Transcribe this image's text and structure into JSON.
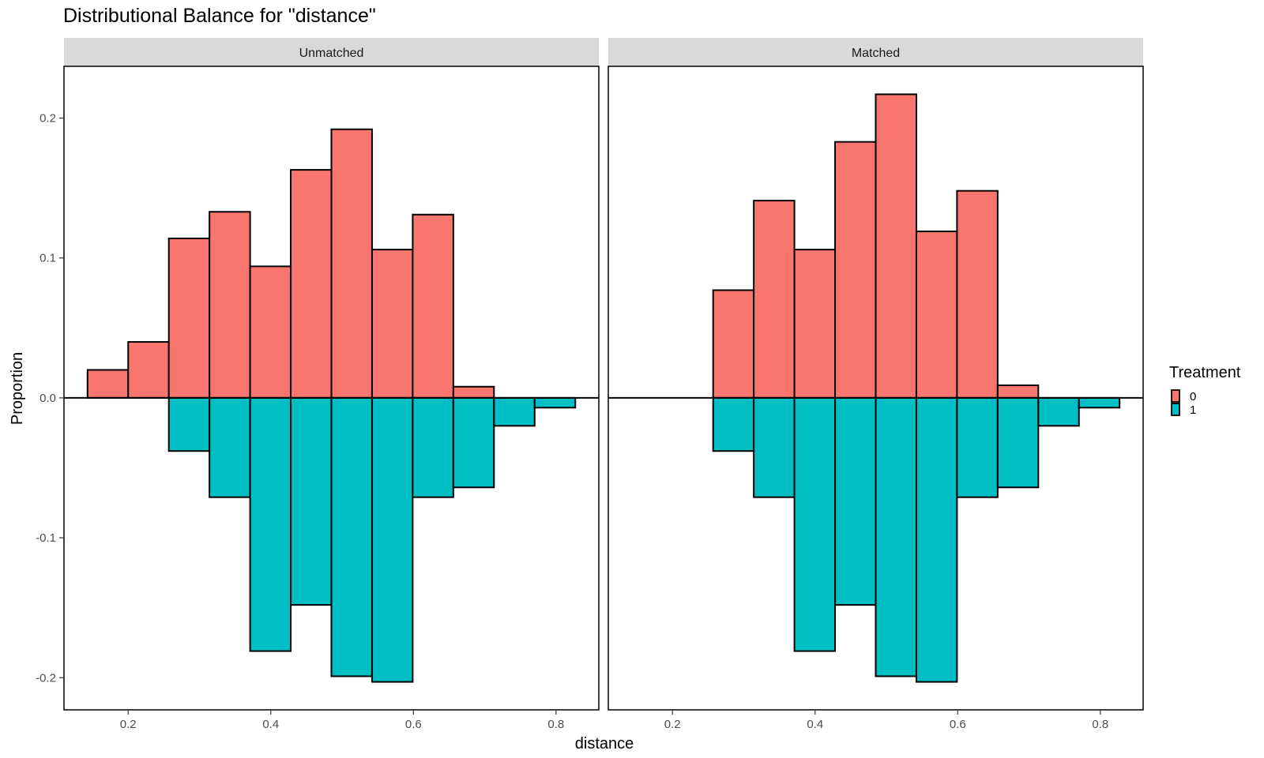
{
  "chart_data": {
    "type": "bar",
    "title": "Distributional Balance for \"distance\"",
    "xlabel": "distance",
    "ylabel": "Proportion",
    "xlim": [
      0.11,
      0.86
    ],
    "ylim": [
      -0.223,
      0.237
    ],
    "x_ticks": [
      0.2,
      0.4,
      0.6,
      0.8
    ],
    "x_tick_labels": [
      "0.2",
      "0.4",
      "0.6",
      "0.8"
    ],
    "y_ticks": [
      -0.2,
      -0.1,
      0.0,
      0.1,
      0.2
    ],
    "y_tick_labels": [
      "-0.2",
      "-0.1",
      "0.0",
      "0.1",
      "0.2"
    ],
    "bin_edges": [
      0.143,
      0.2,
      0.257,
      0.314,
      0.371,
      0.428,
      0.485,
      0.542,
      0.599,
      0.656,
      0.713,
      0.77,
      0.827
    ],
    "legend": {
      "title": "Treatment",
      "position": "right",
      "entries": [
        {
          "label": "0",
          "color": "#F8766D"
        },
        {
          "label": "1",
          "color": "#00BFC4"
        }
      ]
    },
    "grid": false,
    "panels": [
      {
        "strip": "Unmatched",
        "series": [
          {
            "name": "0",
            "color": "#F8766D",
            "values": [
              0.02,
              0.04,
              0.114,
              0.133,
              0.094,
              0.163,
              0.192,
              0.106,
              0.131,
              0.008,
              0.0,
              0.0
            ]
          },
          {
            "name": "1",
            "color": "#00BFC4",
            "values": [
              0.0,
              0.0,
              -0.038,
              -0.071,
              -0.181,
              -0.148,
              -0.199,
              -0.203,
              -0.071,
              -0.064,
              -0.02,
              -0.007
            ]
          }
        ]
      },
      {
        "strip": "Matched",
        "series": [
          {
            "name": "0",
            "color": "#F8766D",
            "values": [
              0.0,
              0.0,
              0.077,
              0.141,
              0.106,
              0.183,
              0.217,
              0.119,
              0.148,
              0.009,
              0.0,
              0.0
            ]
          },
          {
            "name": "1",
            "color": "#00BFC4",
            "values": [
              0.0,
              0.0,
              -0.038,
              -0.071,
              -0.181,
              -0.148,
              -0.199,
              -0.203,
              -0.071,
              -0.064,
              -0.02,
              -0.007
            ]
          }
        ]
      }
    ]
  }
}
